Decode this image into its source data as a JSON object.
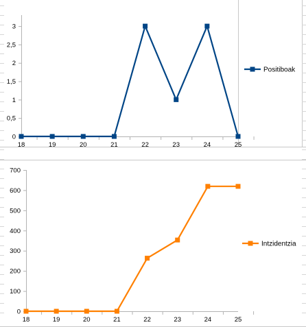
{
  "chart_data": [
    {
      "type": "line",
      "categories": [
        "18",
        "19",
        "20",
        "21",
        "22",
        "23",
        "24",
        "25"
      ],
      "series": [
        {
          "name": "Positiboak",
          "values": [
            0,
            0,
            0,
            0,
            3,
            1,
            3,
            0
          ],
          "color": "#004586"
        }
      ],
      "yticks": [
        "0",
        "0,5",
        "1",
        "1,5",
        "2",
        "2,5",
        "3"
      ],
      "ylim": [
        0,
        3.3
      ],
      "grid": false,
      "legend": "right",
      "marker": "square"
    },
    {
      "type": "line",
      "categories": [
        "18",
        "19",
        "20",
        "21",
        "22",
        "23",
        "24",
        "25"
      ],
      "series": [
        {
          "name": "Intzidentzia",
          "values": [
            0,
            0,
            0,
            0,
            263,
            353,
            619,
            619
          ],
          "color": "#ff8000"
        }
      ],
      "yticks": [
        "0",
        "100",
        "200",
        "300",
        "400",
        "500",
        "600",
        "700"
      ],
      "ylim": [
        0,
        700
      ],
      "grid": false,
      "legend": "right",
      "marker": "square"
    }
  ]
}
